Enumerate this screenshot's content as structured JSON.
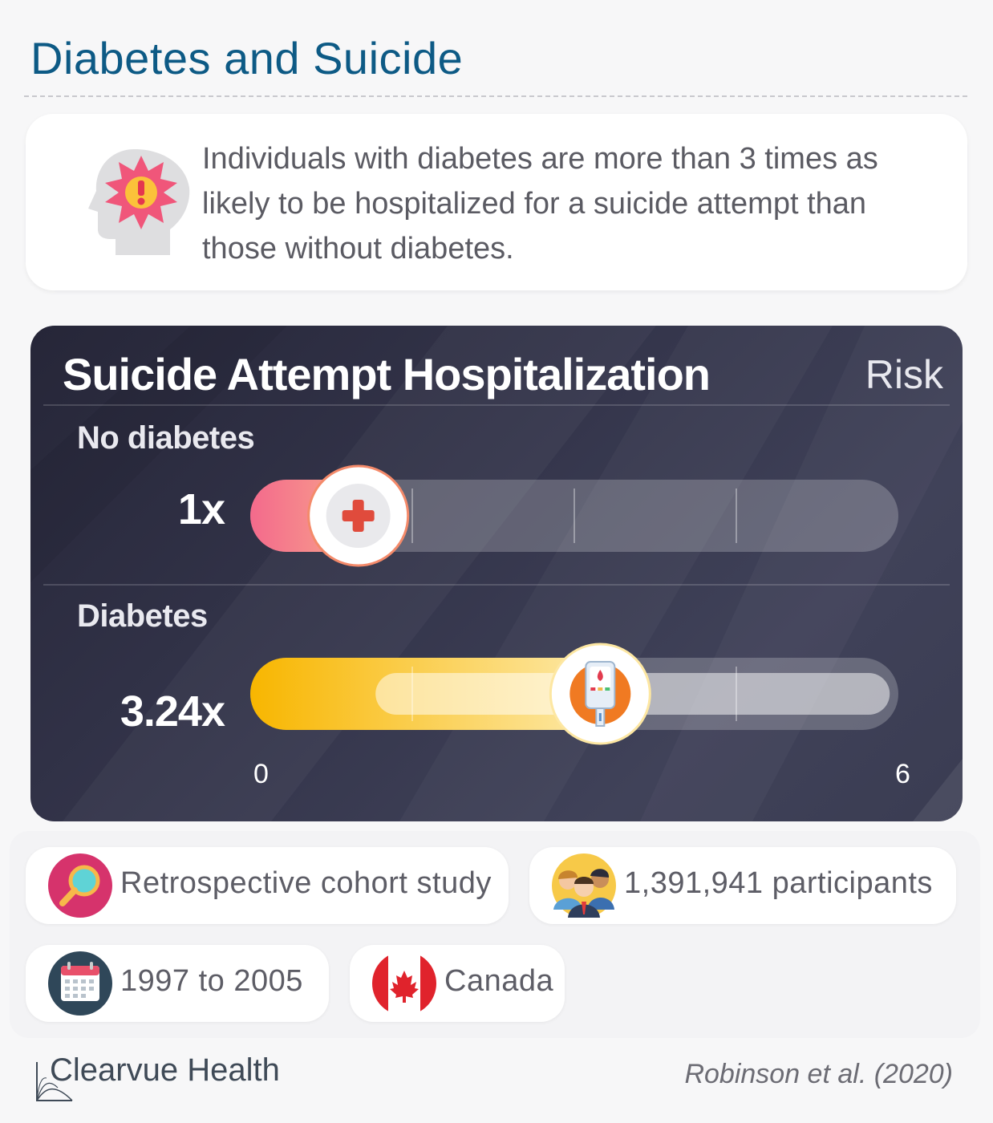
{
  "header": {
    "title": "Diabetes and Suicide"
  },
  "summary": {
    "text": "Individuals with diabetes are more than 3 times as likely to be hospitalized for a suicide attempt than those without diabetes."
  },
  "chart_data": {
    "type": "bar",
    "title": "Suicide Attempt Hospitalization",
    "value_label": "Risk",
    "categories": [
      "No diabetes",
      "Diabetes"
    ],
    "values": [
      1,
      3.24
    ],
    "value_texts": [
      "1x",
      "3.24x"
    ],
    "xlim": [
      0,
      6
    ],
    "tick_labels": [
      "0",
      "6"
    ],
    "colors": [
      "#f06b8a",
      "#f7b500"
    ]
  },
  "study": {
    "design": "Retrospective cohort study",
    "participants": "1,391,941 participants",
    "period": "1997 to 2005",
    "country": "Canada"
  },
  "footer": {
    "brand": "Clearvue Health",
    "citation": "Robinson et al. (2020)"
  }
}
